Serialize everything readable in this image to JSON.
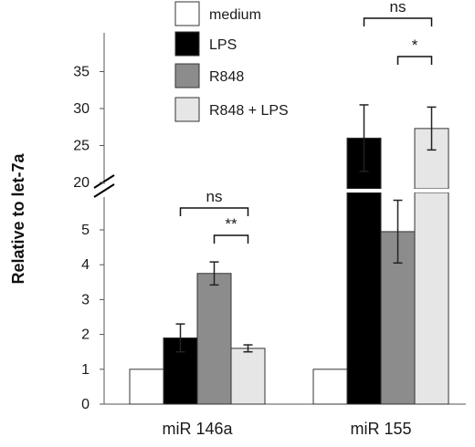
{
  "chart_data": {
    "type": "bar",
    "ylabel": "Relative to let-7a",
    "categories": [
      "miR 146a",
      "miR 155"
    ],
    "series": [
      {
        "name": "medium",
        "color": "#ffffff",
        "values": [
          1,
          1
        ],
        "errors": [
          0,
          0
        ]
      },
      {
        "name": "LPS",
        "color": "#000000",
        "values": [
          1.9,
          26
        ],
        "errors": [
          0.4,
          4.5
        ]
      },
      {
        "name": "R848",
        "color": "#8c8c8c",
        "values": [
          3.75,
          4.95
        ],
        "errors": [
          0.33,
          0.9
        ]
      },
      {
        "name": "R848 + LPS",
        "color": "#e6e6e6",
        "values": [
          1.6,
          27.3
        ],
        "errors": [
          0.1,
          2.9
        ]
      }
    ],
    "axis_break": {
      "from": 6,
      "to": 19
    },
    "y_ticks_lower": [
      "0",
      "1",
      "2",
      "3",
      "4",
      "5"
    ],
    "y_ticks_upper": [
      "20",
      "25",
      "30",
      "35"
    ],
    "legend_position": "top-center",
    "grid": false,
    "significance": [
      {
        "category": 0,
        "from_series": 1,
        "to_series": 3,
        "label": "ns"
      },
      {
        "category": 0,
        "from_series": 2,
        "to_series": 3,
        "label": "**"
      },
      {
        "category": 1,
        "from_series": 1,
        "to_series": 3,
        "label": "ns"
      },
      {
        "category": 1,
        "from_series": 2,
        "to_series": 3,
        "label": "*"
      }
    ]
  }
}
